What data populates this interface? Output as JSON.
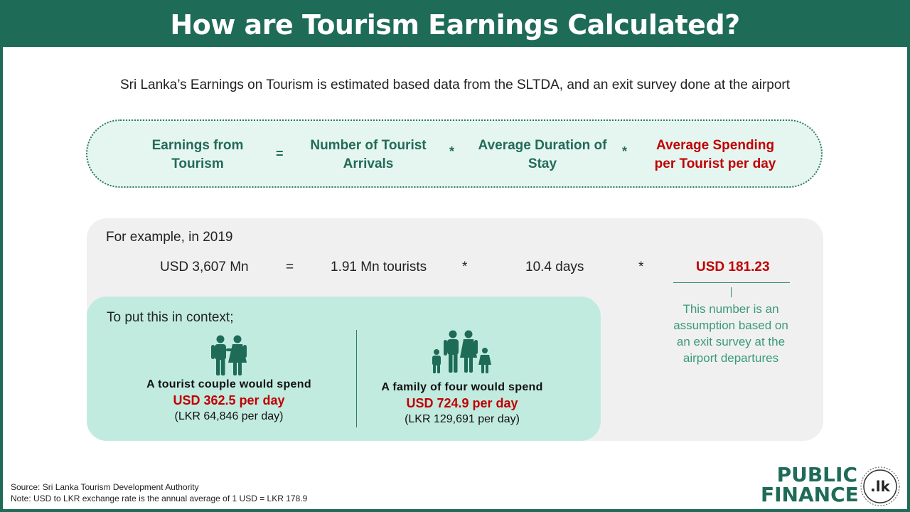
{
  "title": "How are Tourism Earnings Calculated?",
  "intro": "Sri Lanka’s Earnings on Tourism is estimated based data from the SLTDA, and an exit survey done at the airport",
  "formula": {
    "term1": [
      "Earnings from",
      "Tourism"
    ],
    "op1": "=",
    "term2": [
      "Number of Tourist",
      "Arrivals"
    ],
    "op2": "*",
    "term3": [
      "Average Duration of",
      "Stay"
    ],
    "op3": "*",
    "term4": [
      "Average Spending",
      "per Tourist per day"
    ]
  },
  "example": {
    "label": "For example, in 2019",
    "earnings": "USD 3,607 Mn",
    "op1": "=",
    "tourists": "1.91 Mn tourists",
    "op2": "*",
    "days": "10.4 days",
    "op3": "*",
    "spending": "USD 181.23",
    "note": [
      "This number is an",
      "assumption based on",
      "an exit survey at the",
      "airport departures"
    ]
  },
  "context": {
    "label": "To put this in context;",
    "couple": {
      "line1": "A tourist couple would spend",
      "line2": "USD 362.5 per day",
      "line3": "(LKR 64,846 per day)"
    },
    "family": {
      "line1": "A family of four would spend",
      "line2": "USD 724.9 per day",
      "line3": "(LKR 129,691 per day)"
    }
  },
  "source": "Source:  Sri Lanka Tourism Development Authority",
  "footnote": "Note: USD to LKR exchange rate is the annual average of 1 USD = LKR 178.9",
  "brand": {
    "line1": "PUBLIC",
    "line2": "FINANCE",
    "badge": ".lk"
  },
  "colors": {
    "brand_green": "#1e6b57",
    "highlight_red": "#c00000",
    "note_green": "#3a9a78"
  },
  "icons": [
    "couple-icon",
    "family-icon"
  ]
}
